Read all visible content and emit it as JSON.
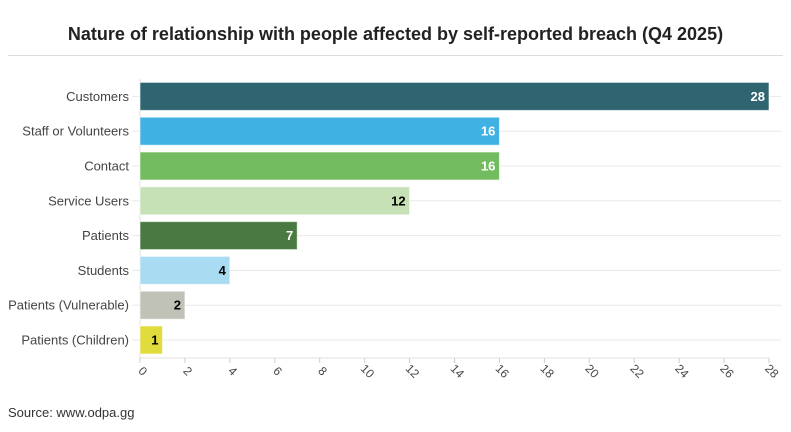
{
  "chart_data": {
    "type": "bar",
    "orientation": "horizontal",
    "title": "Nature of relationship with people affected by self-reported breach (Q4 2025)",
    "categories": [
      "Customers",
      "Staff or Volunteers",
      "Contact",
      "Service Users",
      "Patients",
      "Students",
      "Patients (Vulnerable)",
      "Patients (Children)"
    ],
    "values": [
      28,
      16,
      16,
      12,
      7,
      4,
      2,
      1
    ],
    "colors": [
      "#2f6471",
      "#3fb1e3",
      "#72bc5f",
      "#c6e1b5",
      "#4a7a42",
      "#a9dbf3",
      "#c0c1b7",
      "#dfdc3b"
    ],
    "label_colors": [
      "#fff",
      "#fff",
      "#fff",
      "#000",
      "#fff",
      "#000",
      "#000",
      "#000"
    ],
    "xlim": [
      0,
      28
    ],
    "xticks": [
      0,
      2,
      4,
      6,
      8,
      10,
      12,
      14,
      16,
      18,
      20,
      22,
      24,
      26,
      28
    ],
    "xlabel": "",
    "ylabel": "",
    "grid": true
  },
  "source": "Source: www.odpa.gg"
}
